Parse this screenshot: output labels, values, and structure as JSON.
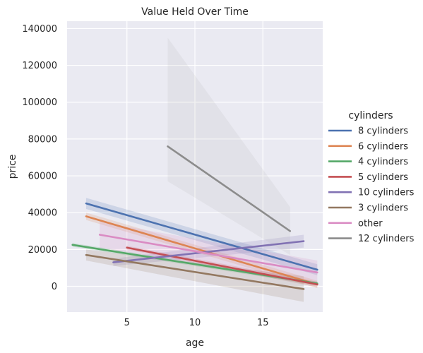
{
  "chart_data": {
    "type": "line",
    "title": "Value Held Over Time",
    "xlabel": "age",
    "ylabel": "price",
    "xlim": [
      0.6,
      19.4
    ],
    "ylim": [
      -14000,
      144000
    ],
    "xticks": [
      5,
      10,
      15
    ],
    "yticks": [
      0,
      20000,
      40000,
      60000,
      80000,
      100000,
      120000,
      140000
    ],
    "grid": true,
    "legend": {
      "title": "cylinders",
      "placement": "right"
    },
    "colors": {
      "plot_background": "#eaeaf2",
      "grid": "#ffffff",
      "band_gray": "#bcbcbc"
    },
    "series": [
      {
        "name": "8 cylinders",
        "color": "#4c72b0",
        "x": [
          2,
          19
        ],
        "y": [
          45000,
          9000
        ],
        "ci_low": [
          42000,
          6000
        ],
        "ci_high": [
          48000,
          12000
        ]
      },
      {
        "name": "6 cylinders",
        "color": "#dd8452",
        "x": [
          2,
          19
        ],
        "y": [
          38000,
          1000
        ],
        "ci_low": [
          36000,
          -1000
        ],
        "ci_high": [
          40000,
          3000
        ]
      },
      {
        "name": "4 cylinders",
        "color": "#55a868",
        "x": [
          1,
          19
        ],
        "y": [
          22500,
          1500
        ],
        "ci_low": [
          21500,
          500
        ],
        "ci_high": [
          23500,
          2500
        ]
      },
      {
        "name": "5 cylinders",
        "color": "#c44e52",
        "x": [
          5,
          19
        ],
        "y": [
          21000,
          1000
        ],
        "ci_low": [
          20000,
          -500
        ],
        "ci_high": [
          22000,
          2500
        ]
      },
      {
        "name": "10 cylinders",
        "color": "#8172b3",
        "x": [
          4,
          18
        ],
        "y": [
          13000,
          24500
        ],
        "ci_low": [
          11000,
          21000
        ],
        "ci_high": [
          15000,
          28000
        ]
      },
      {
        "name": "3 cylinders",
        "color": "#937860",
        "x": [
          2,
          18
        ],
        "y": [
          17000,
          -1500
        ],
        "ci_low": [
          14000,
          -8500
        ],
        "ci_high": [
          20000,
          5500
        ]
      },
      {
        "name": "other",
        "color": "#da8bc3",
        "x": [
          3,
          19
        ],
        "y": [
          28000,
          7500
        ],
        "ci_low": [
          21000,
          1000
        ],
        "ci_high": [
          35000,
          14000
        ]
      },
      {
        "name": "12 cylinders",
        "color": "#8c8c8c",
        "x": [
          8,
          17
        ],
        "y": [
          76000,
          30000
        ],
        "ci_low": [
          57000,
          17000
        ],
        "ci_high": [
          135000,
          43000
        ]
      }
    ]
  }
}
